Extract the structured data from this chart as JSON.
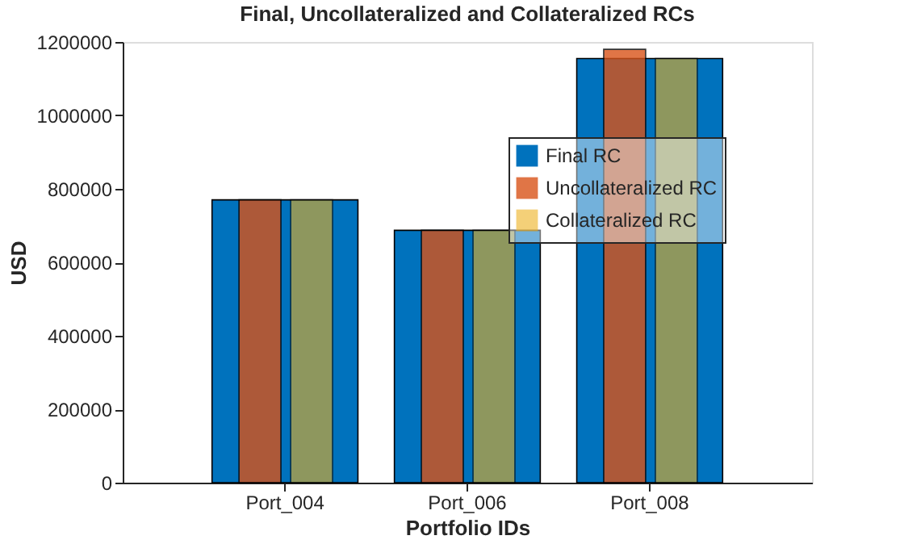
{
  "chart_data": {
    "type": "bar",
    "title": "Final, Uncollateralized and Collateralized RCs",
    "xlabel": "Portfolio IDs",
    "ylabel": "USD",
    "categories": [
      "Port_004",
      "Port_006",
      "Port_008"
    ],
    "series": [
      {
        "name": "Final RC",
        "color": "#0072bd",
        "values": [
          770000,
          687000,
          1155000
        ]
      },
      {
        "name": "Uncollateralized RC",
        "color": "#d95319",
        "values": [
          770000,
          687000,
          1180000
        ]
      },
      {
        "name": "Collateralized RC",
        "color": "#edb120",
        "values": [
          770000,
          687000,
          1155000
        ]
      }
    ],
    "ylim": [
      0,
      1200000
    ],
    "yticks": [
      0,
      200000,
      400000,
      600000,
      800000,
      1000000,
      1200000
    ],
    "grid": false,
    "legend": "right"
  }
}
